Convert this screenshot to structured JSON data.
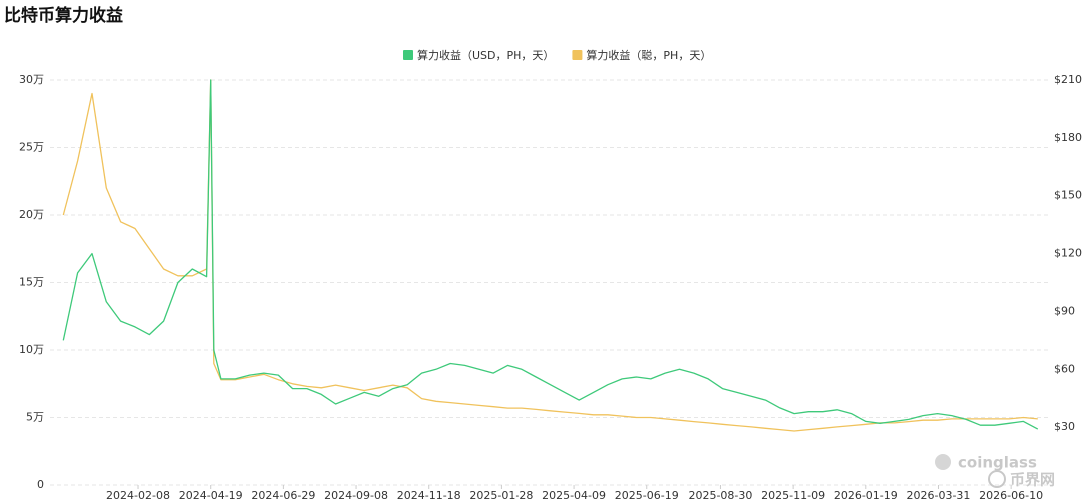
{
  "chart_data": {
    "type": "line",
    "title": "比特币算力收益",
    "watermarks": [
      "coinglass",
      "币界网"
    ],
    "grid": true,
    "legend": "top",
    "x": [
      "2023-11-27",
      "2023-12-11",
      "2023-12-25",
      "2024-01-08",
      "2024-01-22",
      "2024-02-05",
      "2024-02-19",
      "2024-03-04",
      "2024-03-18",
      "2024-04-01",
      "2024-04-15",
      "2024-04-19",
      "2024-04-22",
      "2024-04-29",
      "2024-05-13",
      "2024-05-27",
      "2024-06-10",
      "2024-06-24",
      "2024-07-08",
      "2024-07-22",
      "2024-08-05",
      "2024-08-19",
      "2024-09-02",
      "2024-09-16",
      "2024-09-30",
      "2024-10-14",
      "2024-10-28",
      "2024-11-11",
      "2024-11-25",
      "2024-12-09",
      "2024-12-23",
      "2025-01-06",
      "2025-01-20",
      "2025-02-03",
      "2025-02-17",
      "2025-03-03",
      "2025-03-17",
      "2025-03-31",
      "2025-04-14",
      "2025-04-28",
      "2025-05-12",
      "2025-05-26",
      "2025-06-09",
      "2025-06-23",
      "2025-07-07",
      "2025-07-21",
      "2025-08-04",
      "2025-08-18",
      "2025-09-01",
      "2025-09-15",
      "2025-09-29",
      "2025-10-13",
      "2025-10-27",
      "2025-11-10",
      "2025-11-24",
      "2025-12-08",
      "2025-12-22",
      "2026-01-05",
      "2026-01-19",
      "2026-02-02",
      "2026-02-16",
      "2026-03-02",
      "2026-03-16",
      "2026-03-30",
      "2026-04-13",
      "2026-04-27",
      "2026-05-11",
      "2026-05-25",
      "2026-06-08",
      "2026-06-22",
      "2026-07-06"
    ],
    "xlim": [
      "2023-11-14",
      "2026-07-16"
    ],
    "xticks": [
      "2024-02-08",
      "2024-04-19",
      "2024-06-29",
      "2024-09-08",
      "2024-11-18",
      "2025-01-28",
      "2025-04-09",
      "2025-06-19",
      "2025-08-30",
      "2025-11-09",
      "2026-01-19",
      "2026-03-31",
      "2026-06-10"
    ],
    "ylim": [
      0,
      300000
    ],
    "yticks": [
      {
        "value": 0,
        "label": "0"
      },
      {
        "value": 50000,
        "label": "5万"
      },
      {
        "value": 100000,
        "label": "10万"
      },
      {
        "value": 150000,
        "label": "15万"
      },
      {
        "value": 200000,
        "label": "20万"
      },
      {
        "value": 250000,
        "label": "25万"
      },
      {
        "value": 300000,
        "label": "30万"
      }
    ],
    "y2lim": [
      0,
      210
    ],
    "y2ticks": [
      {
        "value": 30,
        "label": "$30"
      },
      {
        "value": 60,
        "label": "$60"
      },
      {
        "value": 90,
        "label": "$90"
      },
      {
        "value": 120,
        "label": "$120"
      },
      {
        "value": 150,
        "label": "$150"
      },
      {
        "value": 180,
        "label": "$180"
      },
      {
        "value": 210,
        "label": "$210"
      }
    ],
    "series": [
      {
        "name": "算力收益（USD，PH，天）",
        "color": "#3ec97a",
        "axis": "y2",
        "values": [
          75,
          110,
          120,
          95,
          85,
          82,
          78,
          85,
          105,
          112,
          108,
          210,
          70,
          55,
          55,
          57,
          58,
          57,
          50,
          50,
          47,
          42,
          45,
          48,
          46,
          50,
          52,
          58,
          60,
          63,
          62,
          60,
          58,
          62,
          60,
          56,
          52,
          48,
          44,
          48,
          52,
          55,
          56,
          55,
          58,
          60,
          58,
          55,
          50,
          48,
          46,
          44,
          40,
          37,
          38,
          38,
          39,
          37,
          33,
          32,
          33,
          34,
          36,
          37,
          36,
          34,
          31,
          31,
          32,
          33,
          29
        ]
      },
      {
        "name": "算力收益（聪，PH，天）",
        "color": "#f0c25c",
        "axis": "y",
        "values": [
          200000,
          240000,
          290000,
          220000,
          195000,
          190000,
          175000,
          160000,
          155000,
          155000,
          160000,
          300000,
          90000,
          78000,
          78000,
          80000,
          82000,
          78000,
          75000,
          73000,
          72000,
          74000,
          72000,
          70000,
          72000,
          74000,
          72000,
          64000,
          62000,
          61000,
          60000,
          59000,
          58000,
          57000,
          57000,
          56000,
          55000,
          54000,
          53000,
          52000,
          52000,
          51000,
          50000,
          50000,
          49000,
          48000,
          47000,
          46000,
          45000,
          44000,
          43000,
          42000,
          41000,
          40000,
          41000,
          42000,
          43000,
          44000,
          45000,
          46000,
          46000,
          47000,
          48000,
          48000,
          49000,
          49000,
          49000,
          49000,
          49000,
          50000,
          49000
        ]
      }
    ]
  }
}
